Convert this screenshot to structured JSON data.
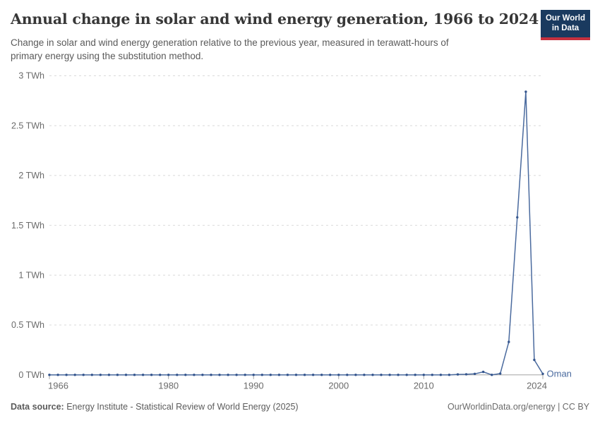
{
  "header": {
    "title": "Annual change in solar and wind energy generation, 1966 to 2024",
    "subtitle": "Change in solar and wind energy generation relative to the previous year, measured in terawatt-hours of primary energy using the substitution method."
  },
  "logo": {
    "line1": "Our World",
    "line2": "in Data"
  },
  "footer": {
    "data_source_label": "Data source:",
    "data_source_text": " Energy Institute - Statistical Review of World Energy (2025)",
    "right_text": "OurWorldinData.org/energy | CC BY"
  },
  "colors": {
    "series_line": "#4a6a9e",
    "series_point": "#35568e",
    "logo_background": "#1a3a5f",
    "logo_bar": "#c5303e",
    "grid": "#d9d9d9",
    "axis": "#a3a3a3",
    "tick_label": "#6b6b6b",
    "title_text": "#373737",
    "subtitle_text": "#5a5a5a"
  },
  "chart_data": {
    "type": "line",
    "title": "Annual change in solar and wind energy generation, 1966 to 2024",
    "xlabel": "",
    "ylabel": "",
    "unit": "TWh",
    "xlim": [
      1966,
      2024
    ],
    "ylim": [
      0,
      3
    ],
    "grid": "horizontal-dashed",
    "legend_position": "end-of-line-label",
    "x_ticks": [
      1966,
      1980,
      1990,
      2000,
      2010,
      2024
    ],
    "y_ticks": [
      {
        "value": 0,
        "label": "0 TWh"
      },
      {
        "value": 0.5,
        "label": "0.5 TWh"
      },
      {
        "value": 1,
        "label": "1 TWh"
      },
      {
        "value": 1.5,
        "label": "1.5 TWh"
      },
      {
        "value": 2,
        "label": "2 TWh"
      },
      {
        "value": 2.5,
        "label": "2.5 TWh"
      },
      {
        "value": 3,
        "label": "3 TWh"
      }
    ],
    "series": [
      {
        "name": "Oman",
        "x": [
          1966,
          1967,
          1968,
          1969,
          1970,
          1971,
          1972,
          1973,
          1974,
          1975,
          1976,
          1977,
          1978,
          1979,
          1980,
          1981,
          1982,
          1983,
          1984,
          1985,
          1986,
          1987,
          1988,
          1989,
          1990,
          1991,
          1992,
          1993,
          1994,
          1995,
          1996,
          1997,
          1998,
          1999,
          2000,
          2001,
          2002,
          2003,
          2004,
          2005,
          2006,
          2007,
          2008,
          2009,
          2010,
          2011,
          2012,
          2013,
          2014,
          2015,
          2016,
          2017,
          2018,
          2019,
          2020,
          2021,
          2022,
          2023,
          2024
        ],
        "values": [
          0,
          0,
          0,
          0,
          0,
          0,
          0,
          0,
          0,
          0,
          0,
          0,
          0,
          0,
          0,
          0,
          0,
          0,
          0,
          0,
          0,
          0,
          0,
          0,
          0,
          0,
          0,
          0,
          0,
          0,
          0,
          0,
          0,
          0,
          0,
          0,
          0,
          0,
          0,
          0,
          0,
          0,
          0,
          0,
          0,
          0,
          0,
          0,
          0.004,
          0.006,
          0.01,
          0.03,
          0,
          0.013,
          0.33,
          1.58,
          2.84,
          0.15,
          0.01
        ]
      }
    ]
  }
}
